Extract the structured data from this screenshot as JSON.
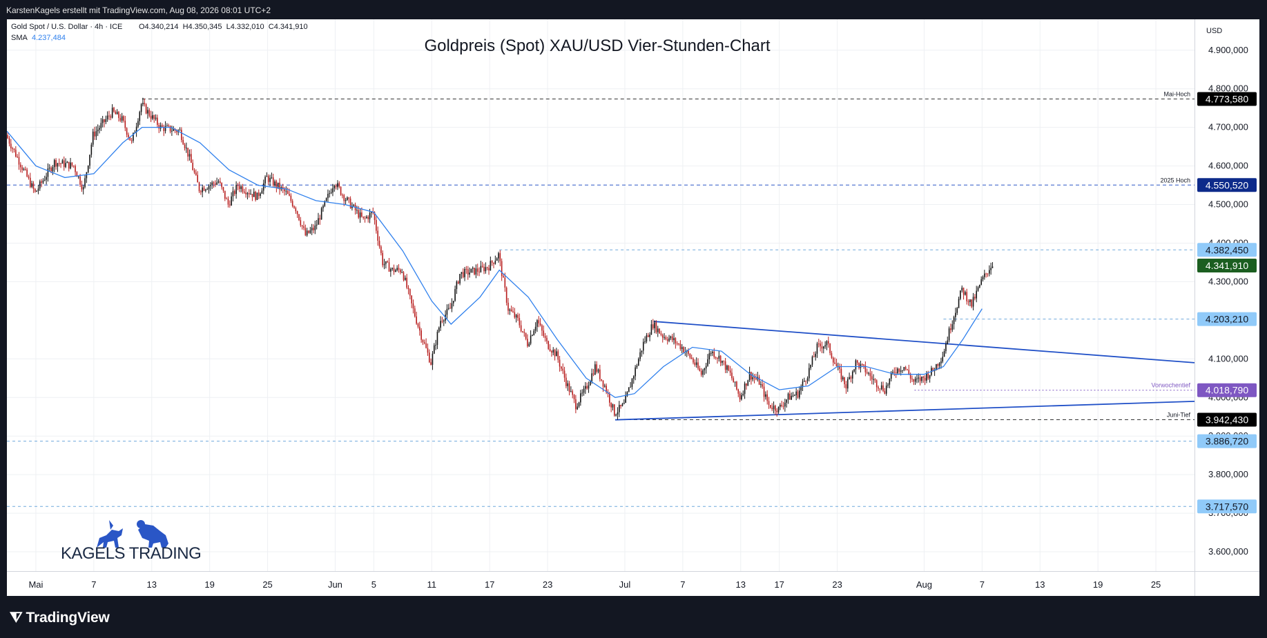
{
  "header": {
    "attribution": "KarstenKagels erstellt mit TradingView.com, Aug 08, 2026 08:01 UTC+2"
  },
  "footer": {
    "brand": "TradingView"
  },
  "colors": {
    "up": "#111111",
    "down": "#b71c1c",
    "sma": "#2f80ed",
    "trendline": "#1f4fc7",
    "level_dashed": "#6fa8dc",
    "axis_text": "#131722"
  },
  "icons": {
    "tv_logo": "tradingview-logo-icon",
    "kagels_logo": "bull-bear-logo-icon"
  },
  "chart_data": {
    "type": "candlestick",
    "title": "Goldpreis (Spot) XAU/USD Vier-Stunden-Chart",
    "legend": {
      "symbol": "Gold Spot / U.S. Dollar · 4h · ICE",
      "ohlc": {
        "O": "4.340,214",
        "H": "4.350,345",
        "L": "4.332,010",
        "C": "4.341,910"
      },
      "ohlc_text": "O4.340,214  H4.350,345  L4.332,010  C4.341,910",
      "indicator_label": "SMA",
      "indicator_value": "4.237,484"
    },
    "currency_label": "USD",
    "y_range": [
      3550,
      4980
    ],
    "x_range": [
      "2026-04-28",
      "2026-08-29"
    ],
    "y_ticks": [
      {
        "value": 4900,
        "label": "4.900,000"
      },
      {
        "value": 4800,
        "label": "4.800,000"
      },
      {
        "value": 4700,
        "label": "4.700,000"
      },
      {
        "value": 4600,
        "label": "4.600,000"
      },
      {
        "value": 4500,
        "label": "4.500,000"
      },
      {
        "value": 4400,
        "label": "4.400,000"
      },
      {
        "value": 4300,
        "label": "4.300,000"
      },
      {
        "value": 4100,
        "label": "4.100,000"
      },
      {
        "value": 4000,
        "label": "4.000,000"
      },
      {
        "value": 3900,
        "label": "3.900,000"
      },
      {
        "value": 3800,
        "label": "3.800,000"
      },
      {
        "value": 3700,
        "label": "3.700,000"
      },
      {
        "value": 3600,
        "label": "3.600,000"
      }
    ],
    "x_ticks": [
      {
        "date": "2026-05-01",
        "label": "Mai"
      },
      {
        "date": "2026-05-07",
        "label": "7"
      },
      {
        "date": "2026-05-13",
        "label": "13"
      },
      {
        "date": "2026-05-19",
        "label": "19"
      },
      {
        "date": "2026-05-25",
        "label": "25"
      },
      {
        "date": "2026-06-01",
        "label": "Jun"
      },
      {
        "date": "2026-06-05",
        "label": "5"
      },
      {
        "date": "2026-06-11",
        "label": "11"
      },
      {
        "date": "2026-06-17",
        "label": "17"
      },
      {
        "date": "2026-06-23",
        "label": "23"
      },
      {
        "date": "2026-07-01",
        "label": "Jul"
      },
      {
        "date": "2026-07-07",
        "label": "7"
      },
      {
        "date": "2026-07-13",
        "label": "13"
      },
      {
        "date": "2026-07-17",
        "label": "17"
      },
      {
        "date": "2026-07-23",
        "label": "23"
      },
      {
        "date": "2026-08-01",
        "label": "Aug"
      },
      {
        "date": "2026-08-07",
        "label": "7"
      },
      {
        "date": "2026-08-13",
        "label": "13"
      },
      {
        "date": "2026-08-19",
        "label": "19"
      },
      {
        "date": "2026-08-25",
        "label": "25"
      }
    ],
    "levels": [
      {
        "value": 4773.58,
        "label": "4.773,580",
        "annotation": "Mai-Hoch",
        "from": "2026-05-12",
        "style": "dashed-dark",
        "badge_bg": "#000000",
        "badge_fg": "#ffffff"
      },
      {
        "value": 4550.52,
        "label": "4.550,520",
        "annotation": "2025 Hoch",
        "from": "2026-04-28",
        "style": "dashed-blue",
        "badge_bg": "#0d2a8a",
        "badge_fg": "#ffffff"
      },
      {
        "value": 4382.45,
        "label": "4.382,450",
        "annotation": "",
        "from": "2026-06-18",
        "style": "dashed-light",
        "badge_bg": "#90caf9",
        "badge_fg": "#131722"
      },
      {
        "value": 4341.91,
        "label": "4.341,910",
        "annotation": "",
        "from": null,
        "style": "none",
        "badge_bg": "#1b5e20",
        "badge_fg": "#ffffff"
      },
      {
        "value": 4203.21,
        "label": "4.203,210",
        "annotation": "",
        "from": "2026-08-03",
        "style": "dashed-light",
        "badge_bg": "#90caf9",
        "badge_fg": "#131722"
      },
      {
        "value": 4018.79,
        "label": "4.018,790",
        "annotation": "Vorwochentief",
        "from": "2026-07-31",
        "style": "dashed-purple",
        "badge_bg": "#7e57c2",
        "badge_fg": "#ffffff"
      },
      {
        "value": 3942.43,
        "label": "3.942,430",
        "annotation": "Juni-Tief",
        "from": "2026-06-30",
        "style": "dashed-dark",
        "badge_bg": "#000000",
        "badge_fg": "#ffffff"
      },
      {
        "value": 3886.72,
        "label": "3.886,720",
        "annotation": "",
        "from": "2026-04-28",
        "style": "dashed-light",
        "badge_bg": "#90caf9",
        "badge_fg": "#131722"
      },
      {
        "value": 3717.57,
        "label": "3.717,570",
        "annotation": "",
        "from": "2026-04-28",
        "style": "dashed-light",
        "badge_bg": "#90caf9",
        "badge_fg": "#131722"
      }
    ],
    "trendlines": [
      {
        "name": "upper",
        "from": {
          "date": "2026-07-04",
          "value": 4197
        },
        "to": {
          "date": "2026-08-29",
          "value": 4090
        }
      },
      {
        "name": "lower",
        "from": {
          "date": "2026-06-30",
          "value": 3942
        },
        "to": {
          "date": "2026-08-29",
          "value": 3990
        }
      }
    ],
    "price_path": [
      {
        "date": "2026-04-28",
        "value": 4680
      },
      {
        "date": "2026-04-30",
        "value": 4580
      },
      {
        "date": "2026-05-01",
        "value": 4530
      },
      {
        "date": "2026-05-03",
        "value": 4610
      },
      {
        "date": "2026-05-05",
        "value": 4600
      },
      {
        "date": "2026-05-06",
        "value": 4540
      },
      {
        "date": "2026-05-07",
        "value": 4680
      },
      {
        "date": "2026-05-09",
        "value": 4740
      },
      {
        "date": "2026-05-10",
        "value": 4720
      },
      {
        "date": "2026-05-11",
        "value": 4660
      },
      {
        "date": "2026-05-12",
        "value": 4760
      },
      {
        "date": "2026-05-14",
        "value": 4700
      },
      {
        "date": "2026-05-16",
        "value": 4690
      },
      {
        "date": "2026-05-17",
        "value": 4620
      },
      {
        "date": "2026-05-18",
        "value": 4540
      },
      {
        "date": "2026-05-20",
        "value": 4560
      },
      {
        "date": "2026-05-21",
        "value": 4500
      },
      {
        "date": "2026-05-22",
        "value": 4550
      },
      {
        "date": "2026-05-24",
        "value": 4520
      },
      {
        "date": "2026-05-25",
        "value": 4570
      },
      {
        "date": "2026-05-27",
        "value": 4530
      },
      {
        "date": "2026-05-28",
        "value": 4490
      },
      {
        "date": "2026-05-29",
        "value": 4420
      },
      {
        "date": "2026-05-30",
        "value": 4440
      },
      {
        "date": "2026-06-01",
        "value": 4560
      },
      {
        "date": "2026-06-02",
        "value": 4520
      },
      {
        "date": "2026-06-03",
        "value": 4490
      },
      {
        "date": "2026-06-04",
        "value": 4460
      },
      {
        "date": "2026-06-05",
        "value": 4480
      },
      {
        "date": "2026-06-06",
        "value": 4350
      },
      {
        "date": "2026-06-07",
        "value": 4330
      },
      {
        "date": "2026-06-08",
        "value": 4330
      },
      {
        "date": "2026-06-09",
        "value": 4240
      },
      {
        "date": "2026-06-10",
        "value": 4160
      },
      {
        "date": "2026-06-11",
        "value": 4090
      },
      {
        "date": "2026-06-12",
        "value": 4200
      },
      {
        "date": "2026-06-13",
        "value": 4230
      },
      {
        "date": "2026-06-14",
        "value": 4320
      },
      {
        "date": "2026-06-16",
        "value": 4330
      },
      {
        "date": "2026-06-17",
        "value": 4340
      },
      {
        "date": "2026-06-18",
        "value": 4370
      },
      {
        "date": "2026-06-19",
        "value": 4230
      },
      {
        "date": "2026-06-20",
        "value": 4200
      },
      {
        "date": "2026-06-21",
        "value": 4140
      },
      {
        "date": "2026-06-22",
        "value": 4200
      },
      {
        "date": "2026-06-23",
        "value": 4140
      },
      {
        "date": "2026-06-24",
        "value": 4110
      },
      {
        "date": "2026-06-25",
        "value": 4040
      },
      {
        "date": "2026-06-26",
        "value": 3980
      },
      {
        "date": "2026-06-27",
        "value": 4020
      },
      {
        "date": "2026-06-28",
        "value": 4080
      },
      {
        "date": "2026-06-29",
        "value": 4030
      },
      {
        "date": "2026-06-30",
        "value": 3960
      },
      {
        "date": "2026-07-01",
        "value": 3980
      },
      {
        "date": "2026-07-02",
        "value": 4060
      },
      {
        "date": "2026-07-03",
        "value": 4140
      },
      {
        "date": "2026-07-04",
        "value": 4190
      },
      {
        "date": "2026-07-05",
        "value": 4160
      },
      {
        "date": "2026-07-06",
        "value": 4150
      },
      {
        "date": "2026-07-07",
        "value": 4130
      },
      {
        "date": "2026-07-08",
        "value": 4100
      },
      {
        "date": "2026-07-09",
        "value": 4060
      },
      {
        "date": "2026-07-10",
        "value": 4120
      },
      {
        "date": "2026-07-11",
        "value": 4100
      },
      {
        "date": "2026-07-12",
        "value": 4060
      },
      {
        "date": "2026-07-13",
        "value": 4000
      },
      {
        "date": "2026-07-14",
        "value": 4060
      },
      {
        "date": "2026-07-15",
        "value": 4040
      },
      {
        "date": "2026-07-16",
        "value": 3980
      },
      {
        "date": "2026-07-17",
        "value": 3970
      },
      {
        "date": "2026-07-18",
        "value": 4000
      },
      {
        "date": "2026-07-19",
        "value": 4010
      },
      {
        "date": "2026-07-20",
        "value": 4060
      },
      {
        "date": "2026-07-21",
        "value": 4130
      },
      {
        "date": "2026-07-22",
        "value": 4140
      },
      {
        "date": "2026-07-23",
        "value": 4080
      },
      {
        "date": "2026-07-24",
        "value": 4030
      },
      {
        "date": "2026-07-25",
        "value": 4090
      },
      {
        "date": "2026-07-26",
        "value": 4070
      },
      {
        "date": "2026-07-27",
        "value": 4040
      },
      {
        "date": "2026-07-28",
        "value": 4020
      },
      {
        "date": "2026-07-29",
        "value": 4070
      },
      {
        "date": "2026-07-30",
        "value": 4080
      },
      {
        "date": "2026-07-31",
        "value": 4040
      },
      {
        "date": "2026-08-01",
        "value": 4050
      },
      {
        "date": "2026-08-02",
        "value": 4070
      },
      {
        "date": "2026-08-03",
        "value": 4110
      },
      {
        "date": "2026-08-04",
        "value": 4200
      },
      {
        "date": "2026-08-05",
        "value": 4280
      },
      {
        "date": "2026-08-06",
        "value": 4240
      },
      {
        "date": "2026-08-07",
        "value": 4300
      },
      {
        "date": "2026-08-08",
        "value": 4342
      }
    ],
    "sma_path": [
      {
        "date": "2026-04-28",
        "value": 4690
      },
      {
        "date": "2026-05-01",
        "value": 4600
      },
      {
        "date": "2026-05-04",
        "value": 4570
      },
      {
        "date": "2026-05-07",
        "value": 4580
      },
      {
        "date": "2026-05-10",
        "value": 4660
      },
      {
        "date": "2026-05-12",
        "value": 4700
      },
      {
        "date": "2026-05-15",
        "value": 4700
      },
      {
        "date": "2026-05-18",
        "value": 4660
      },
      {
        "date": "2026-05-21",
        "value": 4590
      },
      {
        "date": "2026-05-24",
        "value": 4550
      },
      {
        "date": "2026-05-27",
        "value": 4540
      },
      {
        "date": "2026-05-30",
        "value": 4510
      },
      {
        "date": "2026-06-02",
        "value": 4500
      },
      {
        "date": "2026-06-05",
        "value": 4480
      },
      {
        "date": "2026-06-08",
        "value": 4380
      },
      {
        "date": "2026-06-11",
        "value": 4250
      },
      {
        "date": "2026-06-13",
        "value": 4190
      },
      {
        "date": "2026-06-16",
        "value": 4260
      },
      {
        "date": "2026-06-18",
        "value": 4330
      },
      {
        "date": "2026-06-21",
        "value": 4260
      },
      {
        "date": "2026-06-24",
        "value": 4150
      },
      {
        "date": "2026-06-27",
        "value": 4050
      },
      {
        "date": "2026-06-30",
        "value": 4000
      },
      {
        "date": "2026-07-02",
        "value": 4010
      },
      {
        "date": "2026-07-05",
        "value": 4080
      },
      {
        "date": "2026-07-08",
        "value": 4130
      },
      {
        "date": "2026-07-11",
        "value": 4120
      },
      {
        "date": "2026-07-14",
        "value": 4060
      },
      {
        "date": "2026-07-17",
        "value": 4020
      },
      {
        "date": "2026-07-20",
        "value": 4030
      },
      {
        "date": "2026-07-23",
        "value": 4080
      },
      {
        "date": "2026-07-26",
        "value": 4080
      },
      {
        "date": "2026-07-29",
        "value": 4060
      },
      {
        "date": "2026-08-01",
        "value": 4060
      },
      {
        "date": "2026-08-03",
        "value": 4080
      },
      {
        "date": "2026-08-05",
        "value": 4150
      },
      {
        "date": "2026-08-07",
        "value": 4230
      }
    ],
    "watermark": "KAGELS TRADING"
  }
}
